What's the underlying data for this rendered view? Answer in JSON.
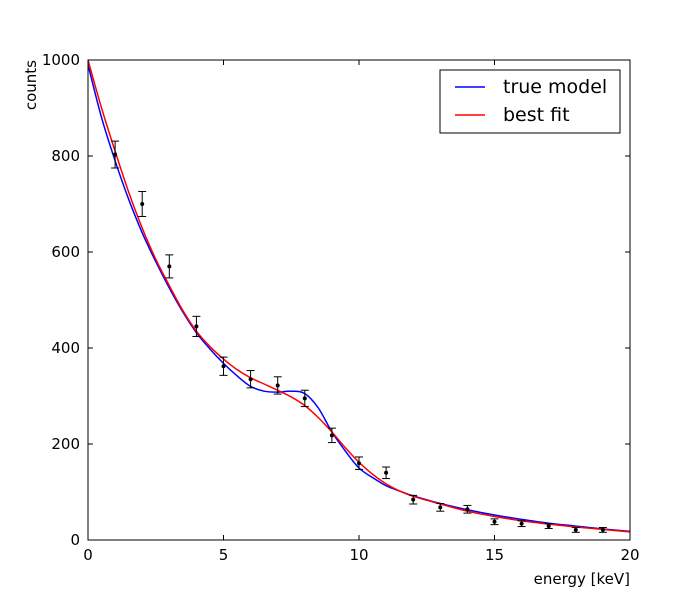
{
  "chart_data": {
    "type": "line",
    "xlabel": "energy [keV]",
    "ylabel": "counts",
    "xlim": [
      0,
      20
    ],
    "ylim": [
      0,
      1000
    ],
    "xticks": [
      0,
      5,
      10,
      15,
      20
    ],
    "yticks": [
      0,
      200,
      400,
      600,
      800,
      1000
    ],
    "xtick_labels": [
      "0",
      "5",
      "10",
      "15",
      "20"
    ],
    "ytick_labels": [
      "0",
      "200",
      "400",
      "600",
      "800",
      "1000"
    ],
    "grid": false,
    "legend_position": "top-right",
    "series": [
      {
        "name": "true model",
        "kind": "line",
        "color": "#0000ff",
        "x": [
          0,
          0.5,
          1,
          1.5,
          2,
          2.5,
          3,
          3.5,
          4,
          4.5,
          5,
          5.5,
          6,
          6.5,
          7,
          7.5,
          8,
          8.5,
          9,
          9.5,
          10,
          10.5,
          11,
          11.5,
          12,
          13,
          14,
          15,
          16,
          17,
          18,
          19,
          20
        ],
        "y": [
          990,
          880,
          790,
          710,
          640,
          580,
          525,
          475,
          432,
          398,
          368,
          342,
          320,
          310,
          308,
          310,
          305,
          275,
          225,
          185,
          150,
          130,
          113,
          102,
          92,
          76,
          63,
          52,
          43,
          35,
          29,
          23,
          18
        ]
      },
      {
        "name": "best fit",
        "kind": "line",
        "color": "#ff0000",
        "x": [
          0,
          0.5,
          1,
          1.5,
          2,
          2.5,
          3,
          3.5,
          4,
          4.5,
          5,
          5.5,
          6,
          6.5,
          7,
          7.5,
          8,
          8.5,
          9,
          9.5,
          10,
          10.5,
          11,
          11.5,
          12,
          13,
          14,
          15,
          16,
          17,
          18,
          19,
          20
        ],
        "y": [
          1000,
          900,
          810,
          725,
          650,
          585,
          530,
          478,
          435,
          403,
          377,
          355,
          338,
          325,
          312,
          298,
          280,
          255,
          225,
          192,
          162,
          137,
          117,
          102,
          91,
          75,
          60,
          49,
          40,
          33,
          27,
          22,
          17
        ]
      },
      {
        "name": "",
        "kind": "errorbar",
        "color": "#000000",
        "x": [
          1,
          2,
          3,
          4,
          5,
          6,
          7,
          8,
          9,
          10,
          11,
          12,
          13,
          14,
          15,
          16,
          17,
          18,
          19
        ],
        "y": [
          803,
          700,
          570,
          445,
          362,
          335,
          322,
          295,
          218,
          160,
          140,
          84,
          68,
          64,
          38,
          34,
          29,
          21,
          21
        ],
        "yerr": [
          28,
          26,
          24,
          21,
          19,
          18,
          18,
          17,
          15,
          13,
          12,
          9,
          8,
          8,
          6,
          6,
          5,
          5,
          5
        ]
      }
    ]
  }
}
